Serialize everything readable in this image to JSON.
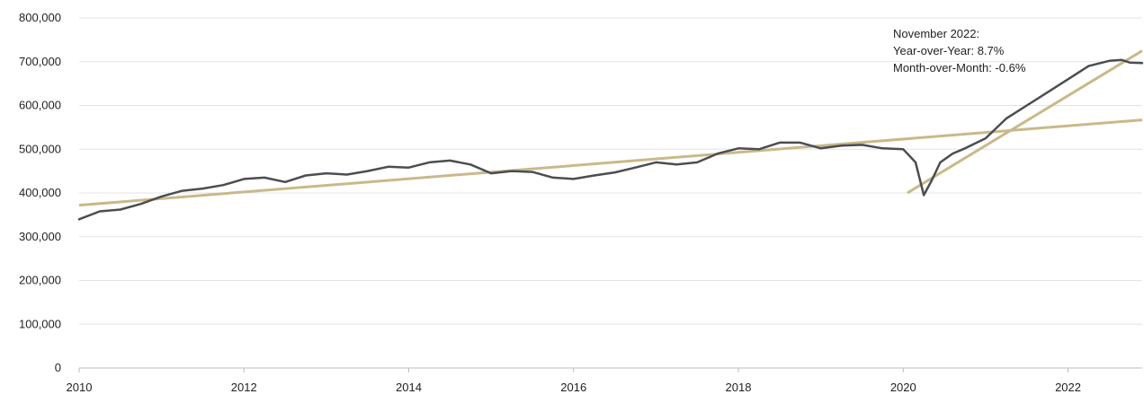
{
  "chart_data": {
    "type": "line",
    "title": "",
    "xlabel": "",
    "ylabel": "",
    "xlim": [
      2010,
      2022.9
    ],
    "ylim": [
      0,
      800000
    ],
    "grid": true,
    "y_ticks": [
      0,
      100000,
      200000,
      300000,
      400000,
      500000,
      600000,
      700000,
      800000
    ],
    "y_tick_labels": [
      "0",
      "100,000",
      "200,000",
      "300,000",
      "400,000",
      "500,000",
      "600,000",
      "700,000",
      "800,000"
    ],
    "x_ticks": [
      2010,
      2012,
      2014,
      2016,
      2018,
      2020,
      2022
    ],
    "x_tick_labels": [
      "2010",
      "2012",
      "2014",
      "2016",
      "2018",
      "2020",
      "2022"
    ],
    "series": [
      {
        "color": "#4a4d52",
        "x": [
          2010.0,
          2010.25,
          2010.5,
          2010.75,
          2011.0,
          2011.25,
          2011.5,
          2011.75,
          2012.0,
          2012.25,
          2012.5,
          2012.75,
          2013.0,
          2013.25,
          2013.5,
          2013.75,
          2014.0,
          2014.25,
          2014.5,
          2014.75,
          2015.0,
          2015.25,
          2015.5,
          2015.75,
          2016.0,
          2016.25,
          2016.5,
          2016.75,
          2017.0,
          2017.25,
          2017.5,
          2017.75,
          2018.0,
          2018.25,
          2018.5,
          2018.75,
          2019.0,
          2019.25,
          2019.5,
          2019.75,
          2020.0,
          2020.15,
          2020.25,
          2020.35,
          2020.45,
          2020.6,
          2020.75,
          2021.0,
          2021.25,
          2021.5,
          2021.75,
          2022.0,
          2022.25,
          2022.5,
          2022.65,
          2022.75,
          2022.9
        ],
        "y": [
          340000,
          358000,
          362000,
          375000,
          392000,
          405000,
          410000,
          418000,
          432000,
          435000,
          425000,
          440000,
          445000,
          442000,
          450000,
          460000,
          458000,
          470000,
          474000,
          465000,
          445000,
          450000,
          448000,
          435000,
          432000,
          440000,
          447000,
          458000,
          470000,
          465000,
          470000,
          490000,
          502000,
          500000,
          515000,
          515000,
          502000,
          508000,
          510000,
          502000,
          500000,
          470000,
          395000,
          430000,
          470000,
          490000,
          502000,
          525000,
          570000,
          600000,
          630000,
          660000,
          690000,
          702000,
          704000,
          698000,
          697000
        ]
      }
    ],
    "trendlines": [
      {
        "color": "#c9b98a",
        "x": [
          2010,
          2022.9
        ],
        "y": [
          372000,
          567000
        ]
      },
      {
        "color": "#c9b98a",
        "x": [
          2020.05,
          2022.9
        ],
        "y": [
          400000,
          725000
        ]
      }
    ],
    "annotation": {
      "lines": [
        "November 2022:",
        "Year-over-Year: 8.7%",
        "Month-over-Month: -0.6%"
      ]
    }
  }
}
